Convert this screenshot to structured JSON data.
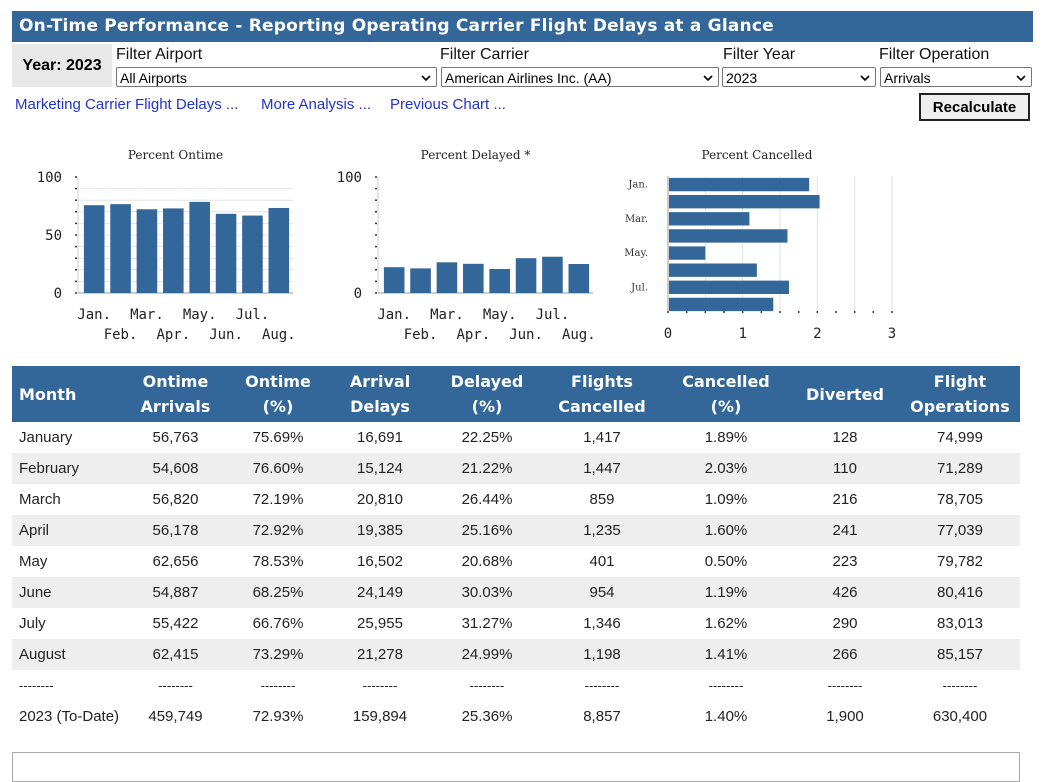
{
  "title": "On-Time Performance - Reporting Operating Carrier Flight Delays at a Glance",
  "year_label": "Year: 2023",
  "filters": [
    {
      "label": "Filter Airport",
      "value": "All Airports"
    },
    {
      "label": "Filter Carrier",
      "value": "American Airlines Inc. (AA)"
    },
    {
      "label": "Filter Year",
      "value": "2023"
    },
    {
      "label": "Filter Operation",
      "value": "Arrivals"
    }
  ],
  "links": [
    "Marketing Carrier Flight Delays ...",
    "More Analysis ...",
    "Previous Chart ..."
  ],
  "recalculate_label": "Recalculate",
  "chart_data": [
    {
      "type": "bar",
      "title": "Percent Ontime",
      "categories": [
        "Jan.",
        "Feb.",
        "Mar.",
        "Apr.",
        "May.",
        "Jun.",
        "Jul.",
        "Aug."
      ],
      "values": [
        75.69,
        76.6,
        72.19,
        72.92,
        78.53,
        68.25,
        66.76,
        73.29
      ],
      "yticks": [
        "0",
        "50",
        "100"
      ],
      "ylim": [
        0,
        100
      ],
      "color": "#336699"
    },
    {
      "type": "bar",
      "title": "Percent Delayed *",
      "categories": [
        "Jan.",
        "Feb.",
        "Mar.",
        "Apr.",
        "May.",
        "Jun.",
        "Jul.",
        "Aug."
      ],
      "values": [
        22.25,
        21.22,
        26.44,
        25.16,
        20.68,
        30.03,
        31.27,
        24.99
      ],
      "yticks": [
        "0",
        "100"
      ],
      "ylim": [
        0,
        100
      ],
      "color": "#336699"
    },
    {
      "type": "bar",
      "orientation": "horizontal",
      "title": "Percent Cancelled",
      "categories": [
        "Jan.",
        "Feb.",
        "Mar.",
        "Apr.",
        "May.",
        "Jun.",
        "Jul.",
        "Aug."
      ],
      "category_labels_shown": [
        "Jan.",
        "Mar.",
        "May.",
        "Jul."
      ],
      "values": [
        1.89,
        2.03,
        1.09,
        1.6,
        0.5,
        1.19,
        1.62,
        1.41
      ],
      "xticks": [
        "0",
        "1",
        "2",
        "3"
      ],
      "xlim": [
        0,
        3
      ],
      "color": "#336699"
    }
  ],
  "table": {
    "headers": [
      "Month",
      "Ontime Arrivals",
      "Ontime (%)",
      "Arrival Delays",
      "Delayed (%)",
      "Flights Cancelled",
      "Cancelled (%)",
      "Diverted",
      "Flight Operations"
    ],
    "rows": [
      [
        "January",
        "56,763",
        "75.69%",
        "16,691",
        "22.25%",
        "1,417",
        "1.89%",
        "128",
        "74,999"
      ],
      [
        "February",
        "54,608",
        "76.60%",
        "15,124",
        "21.22%",
        "1,447",
        "2.03%",
        "110",
        "71,289"
      ],
      [
        "March",
        "56,820",
        "72.19%",
        "20,810",
        "26.44%",
        "859",
        "1.09%",
        "216",
        "78,705"
      ],
      [
        "April",
        "56,178",
        "72.92%",
        "19,385",
        "25.16%",
        "1,235",
        "1.60%",
        "241",
        "77,039"
      ],
      [
        "May",
        "62,656",
        "78.53%",
        "16,502",
        "20.68%",
        "401",
        "0.50%",
        "223",
        "79,782"
      ],
      [
        "June",
        "54,887",
        "68.25%",
        "24,149",
        "30.03%",
        "954",
        "1.19%",
        "426",
        "80,416"
      ],
      [
        "July",
        "55,422",
        "66.76%",
        "25,955",
        "31.27%",
        "1,346",
        "1.62%",
        "290",
        "83,013"
      ],
      [
        "August",
        "62,415",
        "73.29%",
        "21,278",
        "24.99%",
        "1,198",
        "1.41%",
        "266",
        "85,157"
      ]
    ],
    "separator": "--------",
    "total": [
      "2023 (To-Date)",
      "459,749",
      "72.93%",
      "159,894",
      "25.36%",
      "8,857",
      "1.40%",
      "1,900",
      "630,400"
    ]
  }
}
